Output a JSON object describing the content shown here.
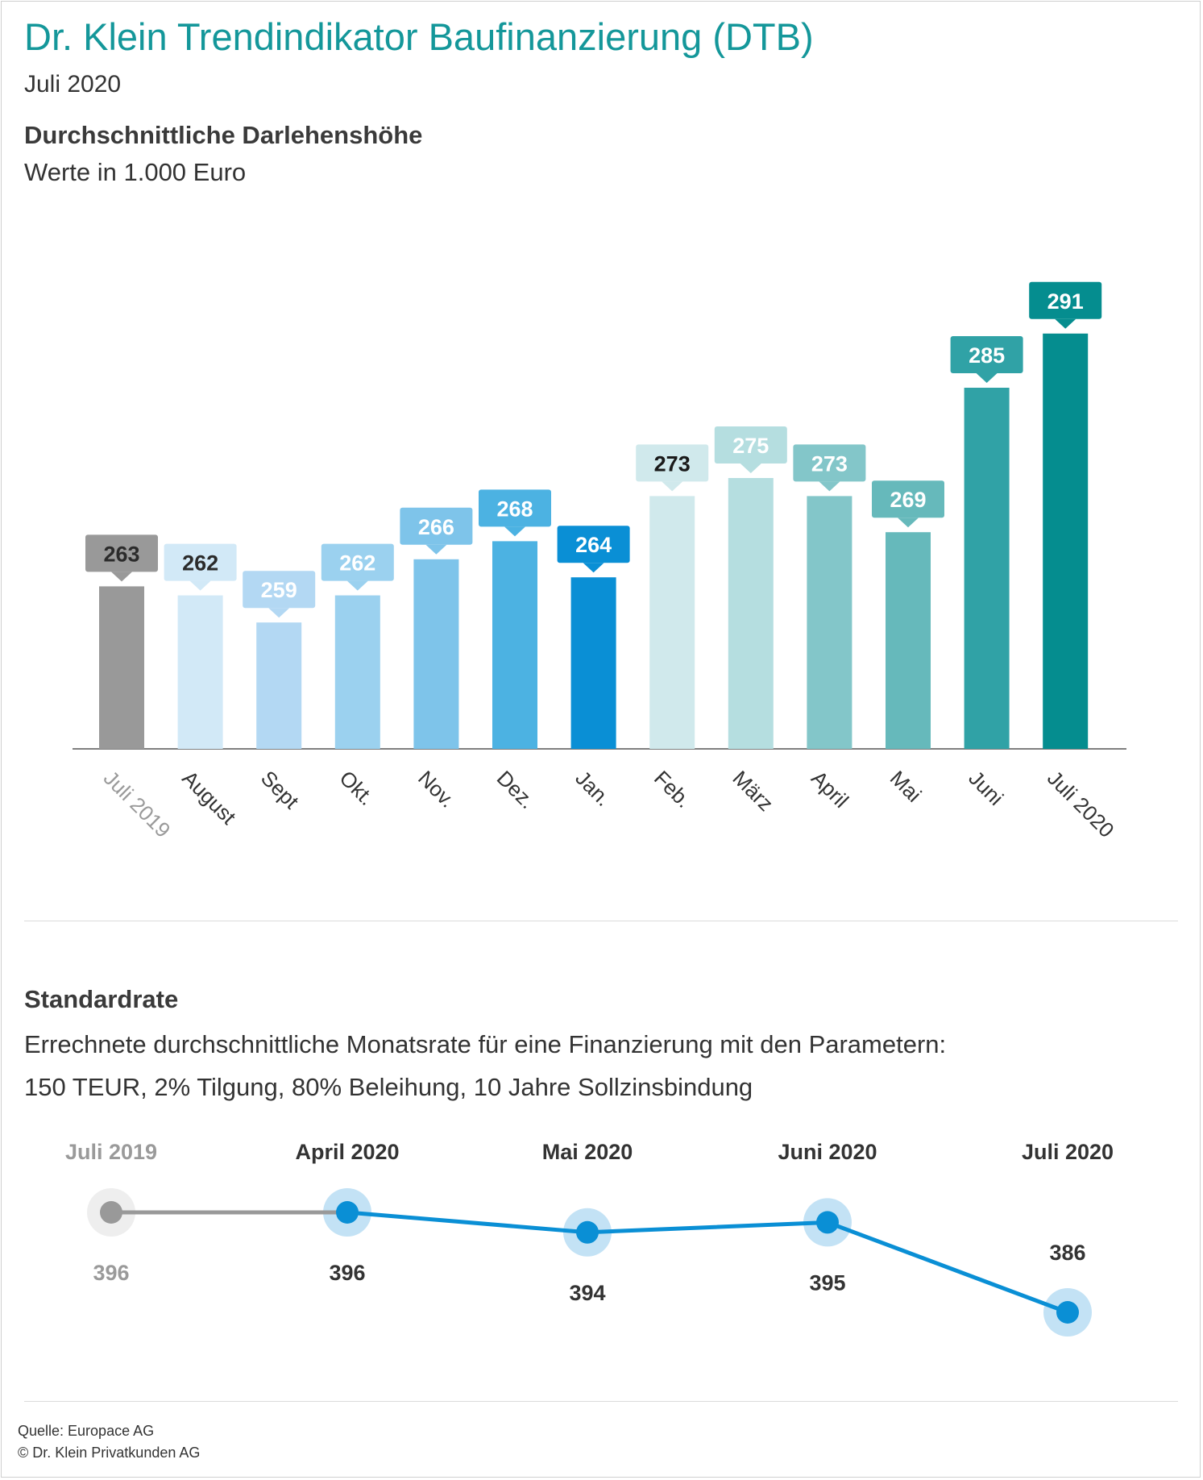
{
  "header": {
    "title": "Dr. Klein Trendindikator Baufinanzierung (DTB)",
    "subtitle": "Juli 2020"
  },
  "section1": {
    "title": "Durchschnittliche Darlehenshöhe",
    "subtitle": "Werte in 1.000 Euro"
  },
  "section2": {
    "title": "Standardrate",
    "subtitle_line1": "Errechnete durchschnittliche Monatsrate für eine Finanzierung mit den Parametern:",
    "subtitle_line2": "150 TEUR, 2% Tilgung, 80% Beleihung, 10 Jahre Sollzinsbindung"
  },
  "footer": {
    "source": "Quelle: Europace AG",
    "copyright": "© Dr. Klein Privatkunden AG"
  },
  "chart_data": [
    {
      "type": "bar",
      "categories": [
        "Juli 2019",
        "August",
        "Sept",
        "Okt.",
        "Nov.",
        "Dez.",
        "Jan.",
        "Feb.",
        "März",
        "April",
        "Mai",
        "Juni",
        "Juli 2020"
      ],
      "values": [
        263,
        262,
        259,
        262,
        266,
        268,
        264,
        273,
        275,
        273,
        269,
        285,
        291
      ],
      "colors": [
        "#999999",
        "#d2e9f7",
        "#b3d8f3",
        "#9bd1ef",
        "#7ec4ea",
        "#4cb2e2",
        "#0a8fd5",
        "#d0e9ec",
        "#b5dee0",
        "#83c6c9",
        "#66b9bb",
        "#30a2a6",
        "#058d8f"
      ],
      "label_text_colors": [
        "#2b2b2b",
        "#2b2b2b",
        "#ffffff",
        "#ffffff",
        "#ffffff",
        "#ffffff",
        "#ffffff",
        "#1a1a1a",
        "#ffffff",
        "#ffffff",
        "#ffffff",
        "#ffffff",
        "#ffffff"
      ],
      "category_label_colors": [
        "#9a9a9a",
        "#333333",
        "#333333",
        "#333333",
        "#333333",
        "#333333",
        "#333333",
        "#333333",
        "#333333",
        "#333333",
        "#333333",
        "#333333",
        "#333333"
      ],
      "title": "Durchschnittliche Darlehenshöhe",
      "ylabel": "",
      "ylim": [
        240,
        295
      ]
    },
    {
      "type": "line",
      "categories": [
        "Juli 2019",
        "April 2020",
        "Mai 2020",
        "Juni 2020",
        "Juli 2020"
      ],
      "values": [
        396,
        396,
        394,
        395,
        386
      ],
      "label_position": [
        "below",
        "below",
        "below",
        "below",
        "above"
      ],
      "colors": {
        "past": "#999999",
        "current": "#0a8fd5",
        "halo_past": "#eeeeee",
        "halo_current": "#c3e2f5"
      },
      "title": "Standardrate",
      "ylim": [
        385,
        397
      ]
    }
  ]
}
